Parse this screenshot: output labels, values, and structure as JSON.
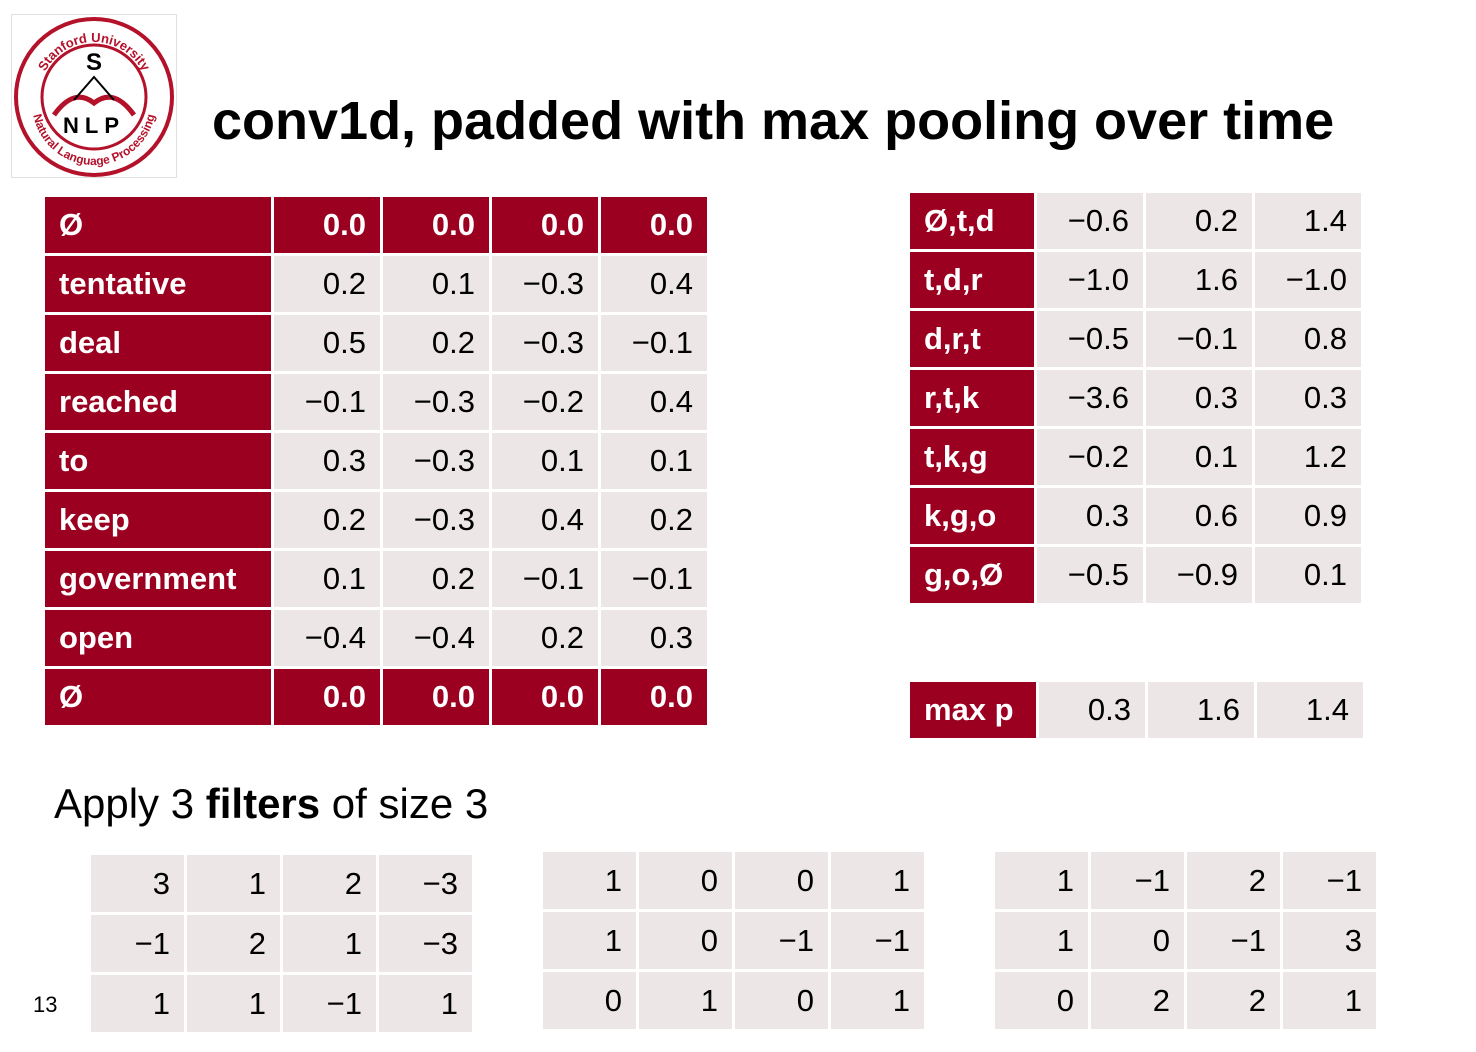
{
  "logo": {
    "text_top": "Stanford University",
    "text_bottom": "Natural Language Processing",
    "letter_s": "S",
    "letters_nlp": "NLP"
  },
  "title": "conv1d, padded with max pooling over time",
  "input_table": {
    "rows": [
      {
        "label": "Ø",
        "values": [
          "0.0",
          "0.0",
          "0.0",
          "0.0"
        ],
        "padding": true
      },
      {
        "label": "tentative",
        "values": [
          "0.2",
          "0.1",
          "−0.3",
          "0.4"
        ],
        "padding": false
      },
      {
        "label": "deal",
        "values": [
          "0.5",
          "0.2",
          "−0.3",
          "−0.1"
        ],
        "padding": false
      },
      {
        "label": "reached",
        "values": [
          "−0.1",
          "−0.3",
          "−0.2",
          "0.4"
        ],
        "padding": false
      },
      {
        "label": "to",
        "values": [
          "0.3",
          "−0.3",
          "0.1",
          "0.1"
        ],
        "padding": false
      },
      {
        "label": "keep",
        "values": [
          "0.2",
          "−0.3",
          "0.4",
          "0.2"
        ],
        "padding": false
      },
      {
        "label": "government",
        "values": [
          "0.1",
          "0.2",
          "−0.1",
          "−0.1"
        ],
        "padding": false
      },
      {
        "label": "open",
        "values": [
          "−0.4",
          "−0.4",
          "0.2",
          "0.3"
        ],
        "padding": false
      },
      {
        "label": "Ø",
        "values": [
          "0.0",
          "0.0",
          "0.0",
          "0.0"
        ],
        "padding": true
      }
    ]
  },
  "output_table": {
    "rows": [
      {
        "label": "Ø,t,d",
        "values": [
          "−0.6",
          "0.2",
          "1.4"
        ]
      },
      {
        "label": "t,d,r",
        "values": [
          "−1.0",
          "1.6",
          "−1.0"
        ]
      },
      {
        "label": "d,r,t",
        "values": [
          "−0.5",
          "−0.1",
          "0.8"
        ]
      },
      {
        "label": "r,t,k",
        "values": [
          "−3.6",
          "0.3",
          "0.3"
        ]
      },
      {
        "label": "t,k,g",
        "values": [
          "−0.2",
          "0.1",
          "1.2"
        ]
      },
      {
        "label": "k,g,o",
        "values": [
          "0.3",
          "0.6",
          "0.9"
        ]
      },
      {
        "label": "g,o,Ø",
        "values": [
          "−0.5",
          "−0.9",
          "0.1"
        ]
      }
    ]
  },
  "max_table": {
    "label": "max p",
    "values": [
      "0.3",
      "1.6",
      "1.4"
    ]
  },
  "apply_text": {
    "prefix": "Apply 3 ",
    "bold": "filters",
    "suffix": " of size 3"
  },
  "filters": [
    [
      [
        "3",
        "1",
        "2",
        "−3"
      ],
      [
        "−1",
        "2",
        "1",
        "−3"
      ],
      [
        "1",
        "1",
        "−1",
        "1"
      ]
    ],
    [
      [
        "1",
        "0",
        "0",
        "1"
      ],
      [
        "1",
        "0",
        "−1",
        "−1"
      ],
      [
        "0",
        "1",
        "0",
        "1"
      ]
    ],
    [
      [
        "1",
        "−1",
        "2",
        "−1"
      ],
      [
        "1",
        "0",
        "−1",
        "3"
      ],
      [
        "0",
        "2",
        "2",
        "1"
      ]
    ]
  ],
  "page_number": "13",
  "colors": {
    "accent": "#9b0020",
    "cell_bg": "#ece6e6",
    "logo_red": "#b3122a"
  }
}
